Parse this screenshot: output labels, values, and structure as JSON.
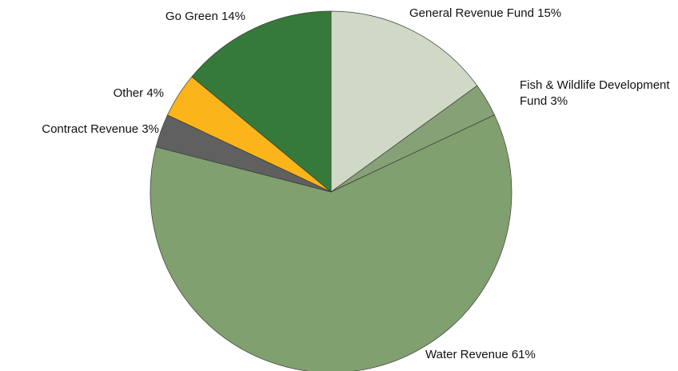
{
  "chart_data": {
    "type": "pie",
    "categories": [
      "General Revenue Fund",
      "Fish & Wildlife Development Fund",
      "Water Revenue",
      "Contract Revenue",
      "Other",
      "Go Green"
    ],
    "values": [
      15,
      3,
      61,
      3,
      4,
      14
    ],
    "value_labels": [
      "15%",
      "3%",
      "61%",
      "3%",
      "4%",
      "14%"
    ],
    "colors": [
      "#d0d9c6",
      "#87a176",
      "#80a06f",
      "#606060",
      "#fbb41a",
      "#357a3a"
    ]
  }
}
